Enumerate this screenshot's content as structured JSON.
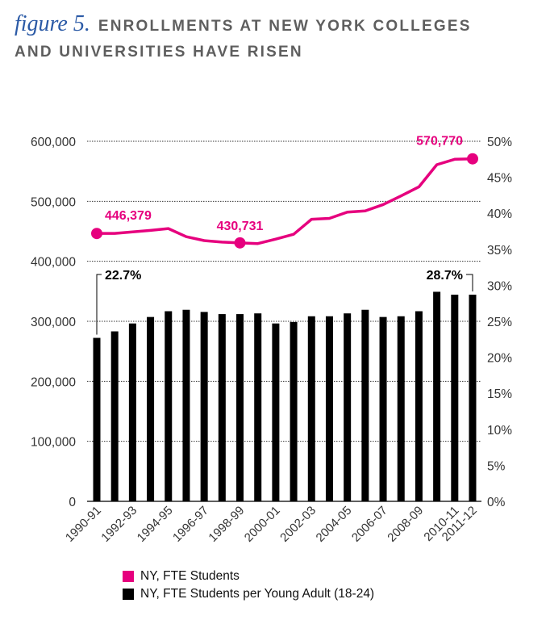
{
  "header": {
    "figure_label": "figure 5.",
    "title_line1": "ENROLLMENTS AT NEW YORK COLLEGES",
    "title_line2": "AND UNIVERSITIES HAVE RISEN"
  },
  "colors": {
    "line": "#e6007e",
    "bars": "#000000",
    "title_accent": "#2b5aa6",
    "title_text": "#5e5e5e"
  },
  "legend": {
    "items": [
      {
        "label": "NY, FTE Students",
        "color": "#e6007e"
      },
      {
        "label": "NY, FTE Students per Young Adult (18-24)",
        "color": "#000000"
      }
    ],
    "placement": "bottom-left"
  },
  "chart_data": {
    "type": "bar",
    "x_tick_labels": [
      "1990-91",
      "1992-93",
      "1994-95",
      "1996-97",
      "1998-99",
      "2000-01",
      "2002-03",
      "2004-05",
      "2006-07",
      "2008-09",
      "2010-11",
      "2011-12"
    ],
    "left_axis": {
      "ylim": [
        0,
        600000
      ],
      "ticks": [
        "0",
        "100,000",
        "200,000",
        "300,000",
        "400,000",
        "500,000",
        "600,000"
      ]
    },
    "right_axis": {
      "ylim": [
        0,
        50
      ],
      "ticks": [
        "0%",
        "5%",
        "10%",
        "15%",
        "20%",
        "25%",
        "30%",
        "35%",
        "40%",
        "45%",
        "50%"
      ]
    },
    "grid": "dotted at labeled left-axis ticks",
    "series": [
      {
        "name": "NY, FTE Students per Young Adult (18-24)",
        "type": "bar",
        "axis": "right",
        "values": [
          22.7,
          23.6,
          24.7,
          25.6,
          26.4,
          26.6,
          26.3,
          26.0,
          26.0,
          26.1,
          24.7,
          24.9,
          25.7,
          25.7,
          26.1,
          26.6,
          25.6,
          25.7,
          26.4,
          29.1,
          28.7,
          28.7
        ]
      },
      {
        "name": "NY, FTE Students",
        "type": "line",
        "axis": "left",
        "values": [
          446379,
          446500,
          449000,
          451500,
          454500,
          441000,
          434500,
          432000,
          430731,
          429500,
          437000,
          445000,
          470000,
          471500,
          482000,
          484000,
          494500,
          509000,
          524000,
          561000,
          570000,
          570770
        ]
      }
    ],
    "annotations": [
      {
        "text": "446,379",
        "series": "NY, FTE Students",
        "index": 0
      },
      {
        "text": "430,731",
        "series": "NY, FTE Students",
        "index": 8
      },
      {
        "text": "570,770",
        "series": "NY, FTE Students",
        "index": 21
      },
      {
        "text": "22.7%",
        "series": "NY, FTE Students per Young Adult (18-24)",
        "index": 0
      },
      {
        "text": "28.7%",
        "series": "NY, FTE Students per Young Adult (18-24)",
        "index": 21
      }
    ]
  }
}
